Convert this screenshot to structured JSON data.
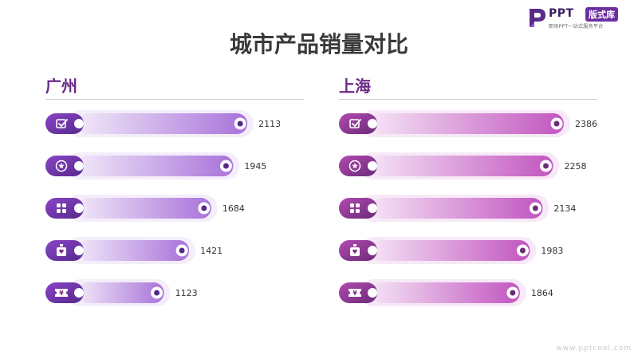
{
  "logo": {
    "brand": "PPT",
    "badge": "版式库",
    "slogan": "职场PPT一站式服务平台"
  },
  "footer": {
    "url": "www.pptcool.com"
  },
  "colors": {
    "purple_dark": "#5b2a86",
    "purple_light": "#a872d9",
    "magenta": "#c155c0"
  },
  "chart_data": [
    {
      "type": "bar",
      "orientation": "horizontal",
      "title": "城市产品销量对比",
      "subtitle": "广州",
      "categories": [
        "",
        "",
        "",
        "",
        ""
      ],
      "category_icons": [
        "check-box-icon",
        "star-icon",
        "grid-icon",
        "perfume-bottle-icon",
        "ticket-icon"
      ],
      "values": [
        2113,
        1945,
        1684,
        1421,
        1123
      ],
      "data_labels": [
        "2113",
        "1945",
        "1684",
        "1421",
        "1123"
      ],
      "xlim": [
        0,
        2386
      ],
      "grid": false,
      "legend": "none"
    },
    {
      "type": "bar",
      "orientation": "horizontal",
      "title": "城市产品销量对比",
      "subtitle": "上海",
      "categories": [
        "",
        "",
        "",
        "",
        ""
      ],
      "category_icons": [
        "check-box-icon",
        "star-icon",
        "grid-icon",
        "perfume-bottle-icon",
        "ticket-icon"
      ],
      "values": [
        2386,
        2258,
        2134,
        1983,
        1864
      ],
      "data_labels": [
        "2386",
        "2258",
        "2134",
        "1983",
        "1864"
      ],
      "xlim": [
        0,
        2386
      ],
      "grid": false,
      "legend": "none"
    }
  ]
}
